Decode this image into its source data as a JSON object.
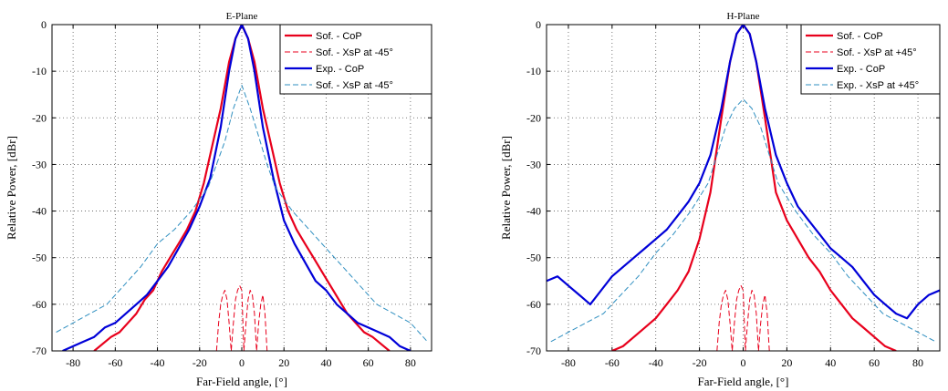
{
  "chart_data": [
    {
      "type": "line",
      "title": "E-Plane",
      "xlabel": "Far-Field angle, [°]",
      "ylabel": "Relative Power, [dBr]",
      "xlim": [
        -90,
        90
      ],
      "ylim": [
        -70,
        0
      ],
      "xticks": [
        -80,
        -60,
        -40,
        -20,
        0,
        20,
        40,
        60,
        80
      ],
      "yticks": [
        0,
        -10,
        -20,
        -30,
        -40,
        -50,
        -60,
        -70
      ],
      "grid": true,
      "legend_position": "top-right",
      "series": [
        {
          "name": "Sof. - CoP",
          "color": "#e8001c",
          "style": "solid",
          "x": [
            -70,
            -62,
            -58,
            -54,
            -50,
            -46,
            -42,
            -38,
            -34,
            -30,
            -26,
            -22,
            -18,
            -14,
            -10,
            -6,
            -3,
            0,
            3,
            6,
            10,
            14,
            18,
            22,
            26,
            30,
            34,
            38,
            42,
            46,
            50,
            54,
            58,
            62,
            70
          ],
          "y": [
            -70,
            -67,
            -66,
            -64,
            -62,
            -59,
            -57,
            -53,
            -50,
            -47,
            -44,
            -40,
            -34,
            -26,
            -18,
            -8,
            -3,
            0,
            -3,
            -8,
            -18,
            -26,
            -34,
            -40,
            -44,
            -47,
            -50,
            -53,
            -56,
            -59,
            -62,
            -64,
            -66,
            -67,
            -70
          ]
        },
        {
          "name": "Sof. - XsP at -45°",
          "color": "#e8001c",
          "style": "dashed",
          "x": [
            -12,
            -11,
            -10,
            -9,
            -8,
            -7,
            -6,
            -5,
            -4,
            -3,
            -2,
            -1,
            0,
            1,
            2,
            3,
            4,
            5,
            6,
            7,
            8,
            9,
            10,
            11,
            12
          ],
          "y": [
            -70,
            -64,
            -60,
            -58,
            -57,
            -59,
            -64,
            -70,
            -64,
            -59,
            -57,
            -56,
            -57,
            -70,
            -64,
            -59,
            -57,
            -58,
            -62,
            -70,
            -64,
            -60,
            -58,
            -62,
            -70
          ]
        },
        {
          "name": "Exp. - CoP",
          "color": "#0000d8",
          "style": "solid",
          "x": [
            -85,
            -80,
            -75,
            -70,
            -65,
            -60,
            -55,
            -50,
            -45,
            -40,
            -35,
            -30,
            -25,
            -20,
            -15,
            -10,
            -6,
            -3,
            0,
            3,
            6,
            10,
            15,
            20,
            25,
            30,
            35,
            40,
            45,
            50,
            55,
            60,
            65,
            70,
            75,
            80
          ],
          "y": [
            -70,
            -69,
            -68,
            -67,
            -65,
            -64,
            -62,
            -60,
            -58,
            -55,
            -52,
            -48,
            -44,
            -39,
            -33,
            -22,
            -10,
            -3,
            0,
            -3,
            -10,
            -22,
            -33,
            -42,
            -47,
            -51,
            -55,
            -57,
            -60,
            -62,
            -64,
            -65,
            -66,
            -67,
            -69,
            -70
          ]
        },
        {
          "name": "Sof. - XsP at -45°",
          "color": "#2f8fc0",
          "style": "dashed",
          "x": [
            -88,
            -80,
            -72,
            -64,
            -56,
            -48,
            -40,
            -32,
            -24,
            -16,
            -12,
            -8,
            -4,
            0,
            4,
            8,
            12,
            16,
            24,
            32,
            40,
            48,
            56,
            64,
            72,
            80,
            88
          ],
          "y": [
            -66,
            -64,
            -62,
            -60,
            -56,
            -52,
            -47,
            -44,
            -40,
            -35,
            -30,
            -25,
            -18,
            -13,
            -18,
            -24,
            -30,
            -35,
            -40,
            -44,
            -48,
            -52,
            -56,
            -60,
            -62,
            -64,
            -68
          ]
        }
      ]
    },
    {
      "type": "line",
      "title": "H-Plane",
      "xlabel": "Far-Field angle, [°]",
      "ylabel": "Relative Power, [dBr]",
      "xlim": [
        -90,
        90
      ],
      "ylim": [
        -70,
        0
      ],
      "xticks": [
        -80,
        -60,
        -40,
        -20,
        0,
        20,
        40,
        60,
        80
      ],
      "yticks": [
        0,
        -10,
        -20,
        -30,
        -40,
        -50,
        -60,
        -70
      ],
      "grid": true,
      "legend_position": "top-right",
      "series": [
        {
          "name": "Sof. - CoP",
          "color": "#e8001c",
          "style": "solid",
          "x": [
            -60,
            -55,
            -50,
            -45,
            -40,
            -35,
            -30,
            -25,
            -20,
            -15,
            -10,
            -6,
            -3,
            0,
            3,
            6,
            10,
            15,
            20,
            25,
            30,
            35,
            40,
            45,
            50,
            55,
            60,
            65,
            70
          ],
          "y": [
            -70,
            -69,
            -67,
            -65,
            -63,
            -60,
            -57,
            -53,
            -46,
            -36,
            -20,
            -8,
            -2,
            0,
            -2,
            -8,
            -20,
            -36,
            -42,
            -46,
            -50,
            -53,
            -57,
            -60,
            -63,
            -65,
            -67,
            -69,
            -70
          ]
        },
        {
          "name": "Sof. - XsP at +45°",
          "color": "#e8001c",
          "style": "dashed",
          "x": [
            -12,
            -11,
            -10,
            -9,
            -8,
            -7,
            -6,
            -5,
            -4,
            -3,
            -2,
            -1,
            0,
            1,
            2,
            3,
            4,
            5,
            6,
            7,
            8,
            9,
            10,
            11,
            12
          ],
          "y": [
            -70,
            -64,
            -60,
            -58,
            -57,
            -59,
            -64,
            -70,
            -64,
            -59,
            -57,
            -56,
            -57,
            -70,
            -64,
            -59,
            -57,
            -58,
            -62,
            -70,
            -64,
            -60,
            -58,
            -62,
            -70
          ]
        },
        {
          "name": "Exp. - CoP",
          "color": "#0000d8",
          "style": "solid",
          "x": [
            -90,
            -85,
            -80,
            -75,
            -70,
            -65,
            -60,
            -55,
            -50,
            -45,
            -40,
            -35,
            -30,
            -25,
            -20,
            -15,
            -10,
            -6,
            -3,
            0,
            3,
            6,
            10,
            15,
            20,
            25,
            30,
            35,
            40,
            45,
            50,
            55,
            60,
            65,
            70,
            75,
            80,
            85,
            90
          ],
          "y": [
            -55,
            -54,
            -56,
            -58,
            -60,
            -57,
            -54,
            -52,
            -50,
            -48,
            -46,
            -44,
            -41,
            -38,
            -34,
            -28,
            -18,
            -8,
            -2,
            0,
            -2,
            -8,
            -18,
            -28,
            -34,
            -39,
            -42,
            -45,
            -48,
            -50,
            -52,
            -55,
            -58,
            -60,
            -62,
            -63,
            -60,
            -58,
            -57
          ]
        },
        {
          "name": "Exp. - XsP at +45°",
          "color": "#2f8fc0",
          "style": "dashed",
          "x": [
            -88,
            -80,
            -72,
            -64,
            -56,
            -48,
            -40,
            -32,
            -24,
            -16,
            -12,
            -8,
            -4,
            0,
            4,
            8,
            12,
            16,
            24,
            32,
            40,
            48,
            56,
            64,
            72,
            80,
            88
          ],
          "y": [
            -68,
            -66,
            -64,
            -62,
            -58,
            -54,
            -49,
            -45,
            -40,
            -34,
            -28,
            -22,
            -18,
            -16,
            -18,
            -22,
            -28,
            -34,
            -40,
            -45,
            -49,
            -54,
            -58,
            -62,
            -64,
            -66,
            -68
          ]
        }
      ]
    }
  ]
}
